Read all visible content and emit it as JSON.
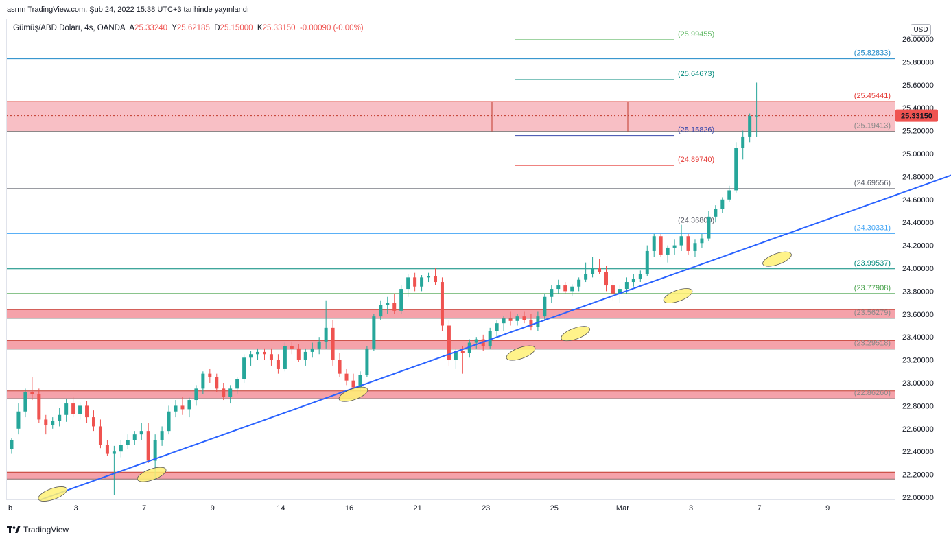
{
  "header": {
    "text": "asrnn TradingView.com, Şub 24, 2022 15:38 UTC+3 tarihinde yayınlandı"
  },
  "legend": {
    "symbol": "Gümüş/ABD Doları, 4s, OANDA",
    "open_label": "A",
    "open": "25.33240",
    "high_label": "Y",
    "high": "25.62185",
    "low_label": "D",
    "low": "25.15000",
    "close_label": "K",
    "close": "25.33150",
    "change": "-0.00090 (-0.00%)"
  },
  "currency": "USD",
  "footer": {
    "brand": "TradingView"
  },
  "chart_data": {
    "type": "candlestick",
    "x_tick_labels": [
      "b",
      "3",
      "7",
      "9",
      "14",
      "16",
      "21",
      "23",
      "25",
      "Mar",
      "3",
      "7",
      "9"
    ],
    "y_tick_labels": [
      "22.00000",
      "22.20000",
      "22.40000",
      "22.60000",
      "22.80000",
      "23.00000",
      "23.20000",
      "23.40000",
      "23.60000",
      "23.80000",
      "24.00000",
      "24.20000",
      "24.40000",
      "24.60000",
      "24.80000",
      "25.00000",
      "25.20000",
      "25.40000",
      "25.60000",
      "25.80000",
      "26.00000"
    ],
    "ylim": [
      22.0,
      26.0
    ],
    "last_price": "25.33150",
    "colors": {
      "up": "#26a69a",
      "down": "#ef5350",
      "zone": "#f28b95",
      "trend": "#2962ff"
    },
    "zones": [
      {
        "low": 25.19413,
        "high": 25.45441
      },
      {
        "low": 23.5627,
        "high": 23.64
      },
      {
        "low": 23.29518,
        "high": 23.37
      },
      {
        "low": 22.8626,
        "high": 22.93
      },
      {
        "low": 22.16,
        "high": 22.22
      }
    ],
    "full_levels": [
      {
        "value": 25.82833,
        "label": "(25.82833)",
        "color": "#1e88c8"
      },
      {
        "value": 25.45441,
        "label": "(25.45441)",
        "color": "#e53935"
      },
      {
        "value": 25.19413,
        "label": "(25.19413)",
        "color": "#888888"
      },
      {
        "value": 24.69556,
        "label": "(24.69556)",
        "color": "#5d606b"
      },
      {
        "value": 24.30331,
        "label": "(24.30331)",
        "color": "#42a5f5"
      },
      {
        "value": 23.99537,
        "label": "(23.99537)",
        "color": "#00897b"
      },
      {
        "value": 23.77908,
        "label": "(23.77908)",
        "color": "#43a047"
      },
      {
        "value": 23.56279,
        "label": "(23.56279)",
        "color": "#888888"
      },
      {
        "value": 23.29518,
        "label": "(23.29518)",
        "color": "#888888"
      },
      {
        "value": 22.8626,
        "label": "(22.86260)",
        "color": "#888888"
      }
    ],
    "short_levels": [
      {
        "value": 25.99455,
        "label": "(25.99455)",
        "color": "#66bb6a"
      },
      {
        "value": 25.64673,
        "label": "(25.64673)",
        "color": "#00897b"
      },
      {
        "value": 25.15826,
        "label": "(25.15826)",
        "color": "#3949ab"
      },
      {
        "value": 24.8974,
        "label": "(24.89740)",
        "color": "#e53935"
      },
      {
        "value": 24.368,
        "label": "(24.36800)",
        "color": "#5d606b"
      }
    ],
    "trendline": [
      {
        "x": 0.95,
        "y": 21.98
      },
      {
        "x": 32.1,
        "y": 25.29
      }
    ],
    "touch_points": [
      [
        1.3,
        22.03
      ],
      [
        4.2,
        22.2
      ],
      [
        10.1,
        22.9
      ],
      [
        15.0,
        23.26
      ],
      [
        16.6,
        23.43
      ],
      [
        19.6,
        23.76
      ],
      [
        22.5,
        24.08
      ]
    ],
    "candles": [
      {
        "x": 0.1,
        "o": 22.42,
        "h": 22.52,
        "l": 22.38,
        "c": 22.5
      },
      {
        "x": 0.3,
        "o": 22.6,
        "h": 22.82,
        "l": 22.55,
        "c": 22.75
      },
      {
        "x": 0.5,
        "o": 22.75,
        "h": 22.95,
        "l": 22.7,
        "c": 22.92
      },
      {
        "x": 0.7,
        "o": 22.92,
        "h": 23.05,
        "l": 22.85,
        "c": 22.9
      },
      {
        "x": 0.9,
        "o": 22.9,
        "h": 22.95,
        "l": 22.65,
        "c": 22.68
      },
      {
        "x": 1.1,
        "o": 22.68,
        "h": 22.72,
        "l": 22.55,
        "c": 22.63
      },
      {
        "x": 1.3,
        "o": 22.63,
        "h": 22.7,
        "l": 22.6,
        "c": 22.67
      },
      {
        "x": 1.5,
        "o": 22.67,
        "h": 22.78,
        "l": 22.62,
        "c": 22.72
      },
      {
        "x": 1.7,
        "o": 22.72,
        "h": 22.86,
        "l": 22.66,
        "c": 22.82
      },
      {
        "x": 1.9,
        "o": 22.82,
        "h": 22.88,
        "l": 22.7,
        "c": 22.73
      },
      {
        "x": 2.1,
        "o": 22.73,
        "h": 22.83,
        "l": 22.68,
        "c": 22.8
      },
      {
        "x": 2.3,
        "o": 22.8,
        "h": 22.84,
        "l": 22.65,
        "c": 22.7
      },
      {
        "x": 2.5,
        "o": 22.7,
        "h": 22.76,
        "l": 22.58,
        "c": 22.62
      },
      {
        "x": 2.7,
        "o": 22.62,
        "h": 22.68,
        "l": 22.43,
        "c": 22.46
      },
      {
        "x": 2.9,
        "o": 22.46,
        "h": 22.5,
        "l": 22.36,
        "c": 22.38
      },
      {
        "x": 3.1,
        "o": 22.38,
        "h": 22.45,
        "l": 22.02,
        "c": 22.4
      },
      {
        "x": 3.3,
        "o": 22.4,
        "h": 22.5,
        "l": 22.35,
        "c": 22.46
      },
      {
        "x": 3.5,
        "o": 22.46,
        "h": 22.55,
        "l": 22.42,
        "c": 22.5
      },
      {
        "x": 3.7,
        "o": 22.5,
        "h": 22.58,
        "l": 22.46,
        "c": 22.55
      },
      {
        "x": 3.9,
        "o": 22.55,
        "h": 22.65,
        "l": 22.5,
        "c": 22.58
      },
      {
        "x": 4.1,
        "o": 22.58,
        "h": 22.65,
        "l": 22.3,
        "c": 22.32
      },
      {
        "x": 4.3,
        "o": 22.32,
        "h": 22.55,
        "l": 22.15,
        "c": 22.5
      },
      {
        "x": 4.5,
        "o": 22.5,
        "h": 22.62,
        "l": 22.45,
        "c": 22.58
      },
      {
        "x": 4.7,
        "o": 22.58,
        "h": 22.8,
        "l": 22.55,
        "c": 22.75
      },
      {
        "x": 4.9,
        "o": 22.75,
        "h": 22.85,
        "l": 22.7,
        "c": 22.8
      },
      {
        "x": 5.1,
        "o": 22.8,
        "h": 22.88,
        "l": 22.72,
        "c": 22.77
      },
      {
        "x": 5.3,
        "o": 22.77,
        "h": 22.87,
        "l": 22.7,
        "c": 22.85
      },
      {
        "x": 5.5,
        "o": 22.85,
        "h": 22.98,
        "l": 22.8,
        "c": 22.95
      },
      {
        "x": 5.7,
        "o": 22.95,
        "h": 23.1,
        "l": 22.9,
        "c": 23.08
      },
      {
        "x": 5.9,
        "o": 23.08,
        "h": 23.12,
        "l": 23.0,
        "c": 23.05
      },
      {
        "x": 6.1,
        "o": 23.05,
        "h": 23.08,
        "l": 22.92,
        "c": 22.95
      },
      {
        "x": 6.3,
        "o": 22.95,
        "h": 23.0,
        "l": 22.85,
        "c": 22.88
      },
      {
        "x": 6.5,
        "o": 22.88,
        "h": 22.98,
        "l": 22.82,
        "c": 22.95
      },
      {
        "x": 6.7,
        "o": 22.95,
        "h": 23.05,
        "l": 22.9,
        "c": 23.03
      },
      {
        "x": 6.9,
        "o": 23.03,
        "h": 23.25,
        "l": 23.0,
        "c": 23.22
      },
      {
        "x": 7.1,
        "o": 23.22,
        "h": 23.28,
        "l": 23.15,
        "c": 23.25
      },
      {
        "x": 7.3,
        "o": 23.25,
        "h": 23.3,
        "l": 23.2,
        "c": 23.27
      },
      {
        "x": 7.5,
        "o": 23.27,
        "h": 23.3,
        "l": 23.2,
        "c": 23.25
      },
      {
        "x": 7.7,
        "o": 23.25,
        "h": 23.3,
        "l": 23.15,
        "c": 23.2
      },
      {
        "x": 7.9,
        "o": 23.2,
        "h": 23.25,
        "l": 23.08,
        "c": 23.12
      },
      {
        "x": 8.1,
        "o": 23.12,
        "h": 23.35,
        "l": 23.1,
        "c": 23.32
      },
      {
        "x": 8.3,
        "o": 23.32,
        "h": 23.36,
        "l": 23.25,
        "c": 23.3
      },
      {
        "x": 8.5,
        "o": 23.3,
        "h": 23.34,
        "l": 23.18,
        "c": 23.2
      },
      {
        "x": 8.7,
        "o": 23.2,
        "h": 23.3,
        "l": 23.15,
        "c": 23.27
      },
      {
        "x": 8.9,
        "o": 23.27,
        "h": 23.35,
        "l": 23.22,
        "c": 23.3
      },
      {
        "x": 9.1,
        "o": 23.3,
        "h": 23.4,
        "l": 23.25,
        "c": 23.36
      },
      {
        "x": 9.3,
        "o": 23.36,
        "h": 23.72,
        "l": 23.3,
        "c": 23.48
      },
      {
        "x": 9.5,
        "o": 23.48,
        "h": 23.55,
        "l": 23.15,
        "c": 23.2
      },
      {
        "x": 9.7,
        "o": 23.2,
        "h": 23.26,
        "l": 23.05,
        "c": 23.08
      },
      {
        "x": 9.9,
        "o": 23.08,
        "h": 23.12,
        "l": 22.98,
        "c": 23.02
      },
      {
        "x": 10.1,
        "o": 23.02,
        "h": 23.08,
        "l": 22.93,
        "c": 22.96
      },
      {
        "x": 10.3,
        "o": 22.96,
        "h": 23.1,
        "l": 22.92,
        "c": 23.07
      },
      {
        "x": 10.5,
        "o": 23.07,
        "h": 23.32,
        "l": 23.05,
        "c": 23.3
      },
      {
        "x": 10.7,
        "o": 23.3,
        "h": 23.6,
        "l": 23.28,
        "c": 23.58
      },
      {
        "x": 10.9,
        "o": 23.58,
        "h": 23.72,
        "l": 23.55,
        "c": 23.68
      },
      {
        "x": 11.1,
        "o": 23.68,
        "h": 23.75,
        "l": 23.6,
        "c": 23.7
      },
      {
        "x": 11.3,
        "o": 23.7,
        "h": 23.78,
        "l": 23.6,
        "c": 23.63
      },
      {
        "x": 11.5,
        "o": 23.63,
        "h": 23.85,
        "l": 23.6,
        "c": 23.82
      },
      {
        "x": 11.7,
        "o": 23.82,
        "h": 23.95,
        "l": 23.75,
        "c": 23.92
      },
      {
        "x": 11.9,
        "o": 23.92,
        "h": 23.96,
        "l": 23.8,
        "c": 23.84
      },
      {
        "x": 12.1,
        "o": 23.84,
        "h": 23.94,
        "l": 23.8,
        "c": 23.92
      },
      {
        "x": 12.3,
        "o": 23.92,
        "h": 23.96,
        "l": 23.88,
        "c": 23.93
      },
      {
        "x": 12.5,
        "o": 23.93,
        "h": 24.0,
        "l": 23.85,
        "c": 23.88
      },
      {
        "x": 12.7,
        "o": 23.88,
        "h": 23.92,
        "l": 23.45,
        "c": 23.5
      },
      {
        "x": 12.9,
        "o": 23.5,
        "h": 23.55,
        "l": 23.15,
        "c": 23.2
      },
      {
        "x": 13.1,
        "o": 23.2,
        "h": 23.3,
        "l": 23.12,
        "c": 23.28
      },
      {
        "x": 13.3,
        "o": 23.28,
        "h": 23.32,
        "l": 23.08,
        "c": 23.26
      },
      {
        "x": 13.5,
        "o": 23.26,
        "h": 23.38,
        "l": 23.22,
        "c": 23.35
      },
      {
        "x": 13.7,
        "o": 23.35,
        "h": 23.4,
        "l": 23.3,
        "c": 23.38
      },
      {
        "x": 13.9,
        "o": 23.38,
        "h": 23.42,
        "l": 23.28,
        "c": 23.32
      },
      {
        "x": 14.1,
        "o": 23.32,
        "h": 23.48,
        "l": 23.3,
        "c": 23.45
      },
      {
        "x": 14.3,
        "o": 23.45,
        "h": 23.55,
        "l": 23.4,
        "c": 23.52
      },
      {
        "x": 14.5,
        "o": 23.52,
        "h": 23.58,
        "l": 23.45,
        "c": 23.56
      },
      {
        "x": 14.7,
        "o": 23.56,
        "h": 23.62,
        "l": 23.5,
        "c": 23.54
      },
      {
        "x": 14.9,
        "o": 23.54,
        "h": 23.6,
        "l": 23.5,
        "c": 23.58
      },
      {
        "x": 15.1,
        "o": 23.58,
        "h": 23.62,
        "l": 23.52,
        "c": 23.55
      },
      {
        "x": 15.3,
        "o": 23.55,
        "h": 23.6,
        "l": 23.46,
        "c": 23.49
      },
      {
        "x": 15.5,
        "o": 23.49,
        "h": 23.62,
        "l": 23.45,
        "c": 23.58
      },
      {
        "x": 15.7,
        "o": 23.58,
        "h": 23.78,
        "l": 23.55,
        "c": 23.75
      },
      {
        "x": 15.9,
        "o": 23.75,
        "h": 23.85,
        "l": 23.7,
        "c": 23.82
      },
      {
        "x": 16.1,
        "o": 23.82,
        "h": 23.9,
        "l": 23.78,
        "c": 23.85
      },
      {
        "x": 16.3,
        "o": 23.85,
        "h": 23.88,
        "l": 23.78,
        "c": 23.8
      },
      {
        "x": 16.5,
        "o": 23.8,
        "h": 23.86,
        "l": 23.76,
        "c": 23.84
      },
      {
        "x": 16.7,
        "o": 23.84,
        "h": 23.92,
        "l": 23.8,
        "c": 23.9
      },
      {
        "x": 16.9,
        "o": 23.9,
        "h": 24.05,
        "l": 23.88,
        "c": 23.95
      },
      {
        "x": 17.1,
        "o": 23.95,
        "h": 24.1,
        "l": 23.92,
        "c": 24.0
      },
      {
        "x": 17.3,
        "o": 24.0,
        "h": 24.08,
        "l": 23.95,
        "c": 23.97
      },
      {
        "x": 17.5,
        "o": 23.97,
        "h": 24.02,
        "l": 23.8,
        "c": 23.85
      },
      {
        "x": 17.7,
        "o": 23.85,
        "h": 23.9,
        "l": 23.72,
        "c": 23.78
      },
      {
        "x": 17.9,
        "o": 23.78,
        "h": 23.85,
        "l": 23.7,
        "c": 23.82
      },
      {
        "x": 18.1,
        "o": 23.82,
        "h": 23.92,
        "l": 23.78,
        "c": 23.88
      },
      {
        "x": 18.3,
        "o": 23.88,
        "h": 23.95,
        "l": 23.84,
        "c": 23.91
      },
      {
        "x": 18.5,
        "o": 23.91,
        "h": 23.98,
        "l": 23.88,
        "c": 23.95
      },
      {
        "x": 18.7,
        "o": 23.95,
        "h": 24.2,
        "l": 23.93,
        "c": 24.15
      },
      {
        "x": 18.9,
        "o": 24.15,
        "h": 24.3,
        "l": 24.1,
        "c": 24.28
      },
      {
        "x": 19.1,
        "o": 24.28,
        "h": 24.3,
        "l": 24.1,
        "c": 24.12
      },
      {
        "x": 19.3,
        "o": 24.12,
        "h": 24.2,
        "l": 24.05,
        "c": 24.18
      },
      {
        "x": 19.5,
        "o": 24.18,
        "h": 24.25,
        "l": 24.12,
        "c": 24.2
      },
      {
        "x": 19.7,
        "o": 24.2,
        "h": 24.38,
        "l": 24.15,
        "c": 24.28
      },
      {
        "x": 19.9,
        "o": 24.28,
        "h": 24.3,
        "l": 24.12,
        "c": 24.15
      },
      {
        "x": 20.1,
        "o": 24.15,
        "h": 24.25,
        "l": 24.1,
        "c": 24.22
      },
      {
        "x": 20.3,
        "o": 24.22,
        "h": 24.3,
        "l": 24.18,
        "c": 24.26
      },
      {
        "x": 20.5,
        "o": 24.26,
        "h": 24.5,
        "l": 24.24,
        "c": 24.45
      },
      {
        "x": 20.7,
        "o": 24.45,
        "h": 24.55,
        "l": 24.4,
        "c": 24.52
      },
      {
        "x": 20.9,
        "o": 24.52,
        "h": 24.62,
        "l": 24.48,
        "c": 24.6
      },
      {
        "x": 21.1,
        "o": 24.6,
        "h": 24.72,
        "l": 24.58,
        "c": 24.68
      },
      {
        "x": 21.3,
        "o": 24.68,
        "h": 25.1,
        "l": 24.66,
        "c": 25.05
      },
      {
        "x": 21.5,
        "o": 25.05,
        "h": 25.2,
        "l": 24.95,
        "c": 25.15
      },
      {
        "x": 21.7,
        "o": 25.15,
        "h": 25.35,
        "l": 25.1,
        "c": 25.33
      },
      {
        "x": 21.9,
        "o": 25.33,
        "h": 25.62,
        "l": 25.15,
        "c": 25.3315
      }
    ]
  }
}
